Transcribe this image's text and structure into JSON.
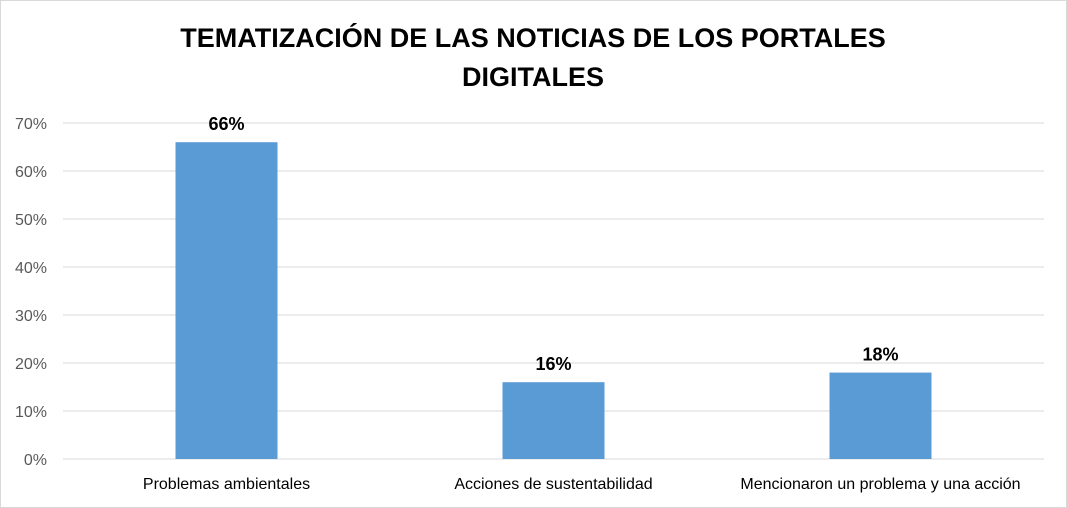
{
  "chart_data": {
    "type": "bar",
    "title": [
      "TEMATIZACIÓN DE LAS NOTICIAS DE LOS PORTALES",
      "DIGITALES"
    ],
    "categories": [
      "Problemas ambientales",
      "Acciones de sustentabilidad",
      "Mencionaron un problema y una acción"
    ],
    "values": [
      66,
      16,
      18
    ],
    "data_labels": [
      "66%",
      "16%",
      "18%"
    ],
    "yticks": [
      "0%",
      "10%",
      "20%",
      "30%",
      "40%",
      "50%",
      "60%",
      "70%"
    ],
    "ylim": [
      0,
      70
    ],
    "xlabel": "",
    "ylabel": "",
    "grid": true,
    "bar_color": "#5b9bd5",
    "grid_color": "#d9d9d9"
  }
}
